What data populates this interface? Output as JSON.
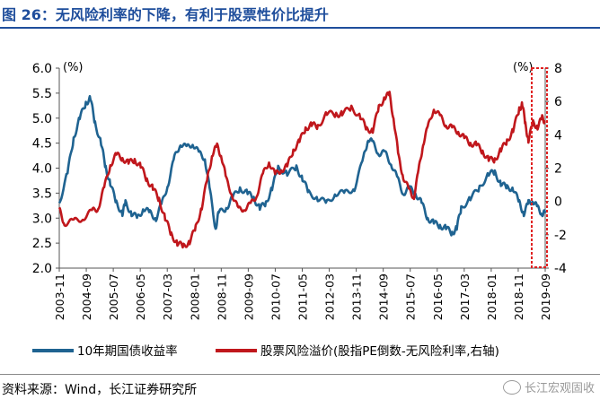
{
  "title": "图 26：无风险利率的下降，有利于股票性价比提升",
  "source": "资料来源：Wind，长江证券研究所",
  "watermark": "长江宏观固收",
  "colors": {
    "title": "#1f4e9c",
    "bond": "#1f6391",
    "erp": "#c0171c",
    "highlight": "#e02020"
  },
  "chart_data": {
    "type": "line",
    "x_ticks": [
      "2003-11",
      "2004-09",
      "2005-07",
      "2006-05",
      "2007-03",
      "2008-01",
      "2008-11",
      "2009-09",
      "2010-07",
      "2011-05",
      "2012-03",
      "2013-11",
      "2014-09",
      "2015-07",
      "2016-05",
      "2017-03",
      "2018-01",
      "2018-11",
      "2019-09"
    ],
    "left_axis": {
      "unit": "(%)",
      "ticks": [
        "6.0",
        "5.5",
        "5.0",
        "4.5",
        "4.0",
        "3.5",
        "3.0",
        "2.5",
        "2.0"
      ],
      "ylim": [
        2.0,
        6.0
      ]
    },
    "right_axis": {
      "unit": "(%)",
      "ticks": [
        "8",
        "6",
        "4",
        "2",
        "0",
        "-2",
        "-4"
      ],
      "ylim": [
        -4,
        8
      ]
    },
    "x_range": [
      2003.83,
      2019.75
    ],
    "series": [
      {
        "name": "10年期国债收益率",
        "axis": "left",
        "points": [
          [
            2003.83,
            3.3
          ],
          [
            2004.1,
            3.9
          ],
          [
            2004.3,
            4.6
          ],
          [
            2004.5,
            5.0
          ],
          [
            2004.7,
            5.3
          ],
          [
            2004.85,
            5.4
          ],
          [
            2005.0,
            4.9
          ],
          [
            2005.2,
            4.5
          ],
          [
            2005.35,
            4.0
          ],
          [
            2005.5,
            3.7
          ],
          [
            2005.7,
            3.3
          ],
          [
            2005.9,
            3.1
          ],
          [
            2006.0,
            3.3
          ],
          [
            2006.2,
            3.1
          ],
          [
            2006.4,
            3.0
          ],
          [
            2006.6,
            3.2
          ],
          [
            2006.8,
            3.1
          ],
          [
            2007.0,
            3.0
          ],
          [
            2007.2,
            3.3
          ],
          [
            2007.4,
            3.7
          ],
          [
            2007.6,
            4.2
          ],
          [
            2007.8,
            4.5
          ],
          [
            2008.0,
            4.4
          ],
          [
            2008.2,
            4.5
          ],
          [
            2008.4,
            4.3
          ],
          [
            2008.6,
            4.2
          ],
          [
            2008.75,
            3.6
          ],
          [
            2008.95,
            2.8
          ],
          [
            2009.05,
            3.1
          ],
          [
            2009.3,
            3.2
          ],
          [
            2009.5,
            3.4
          ],
          [
            2009.75,
            3.6
          ],
          [
            2010.0,
            3.5
          ],
          [
            2010.2,
            3.4
          ],
          [
            2010.4,
            3.2
          ],
          [
            2010.6,
            3.3
          ],
          [
            2010.8,
            3.6
          ],
          [
            2011.0,
            4.0
          ],
          [
            2011.3,
            3.9
          ],
          [
            2011.6,
            4.0
          ],
          [
            2011.8,
            3.8
          ],
          [
            2012.0,
            3.5
          ],
          [
            2012.3,
            3.4
          ],
          [
            2012.6,
            3.3
          ],
          [
            2012.9,
            3.5
          ],
          [
            2013.2,
            3.5
          ],
          [
            2013.5,
            3.6
          ],
          [
            2013.8,
            4.2
          ],
          [
            2013.95,
            4.6
          ],
          [
            2014.1,
            4.5
          ],
          [
            2014.3,
            4.3
          ],
          [
            2014.5,
            4.3
          ],
          [
            2014.7,
            4.1
          ],
          [
            2014.9,
            3.8
          ],
          [
            2015.1,
            3.5
          ],
          [
            2015.3,
            3.6
          ],
          [
            2015.5,
            3.5
          ],
          [
            2015.7,
            3.3
          ],
          [
            2015.9,
            3.0
          ],
          [
            2016.1,
            2.9
          ],
          [
            2016.3,
            2.85
          ],
          [
            2016.5,
            2.8
          ],
          [
            2016.7,
            2.7
          ],
          [
            2016.85,
            2.8
          ],
          [
            2017.0,
            3.2
          ],
          [
            2017.3,
            3.4
          ],
          [
            2017.6,
            3.6
          ],
          [
            2017.9,
            3.9
          ],
          [
            2018.1,
            3.9
          ],
          [
            2018.3,
            3.7
          ],
          [
            2018.5,
            3.6
          ],
          [
            2018.7,
            3.6
          ],
          [
            2018.9,
            3.3
          ],
          [
            2019.05,
            3.1
          ],
          [
            2019.2,
            3.3
          ],
          [
            2019.35,
            3.35
          ],
          [
            2019.5,
            3.2
          ],
          [
            2019.65,
            3.1
          ],
          [
            2019.75,
            3.1
          ]
        ]
      },
      {
        "name": "股票风险溢价(股指PE倒数-无风险利率,右轴)",
        "axis": "right",
        "points": [
          [
            2003.83,
            -0.5
          ],
          [
            2004.0,
            -1.3
          ],
          [
            2004.3,
            -1.2
          ],
          [
            2004.6,
            -1.0
          ],
          [
            2004.9,
            -0.6
          ],
          [
            2005.1,
            -0.4
          ],
          [
            2005.3,
            0.8
          ],
          [
            2005.5,
            2.2
          ],
          [
            2005.7,
            2.8
          ],
          [
            2005.9,
            2.6
          ],
          [
            2006.1,
            2.3
          ],
          [
            2006.3,
            2.5
          ],
          [
            2006.5,
            2.1
          ],
          [
            2006.7,
            1.3
          ],
          [
            2006.9,
            0.8
          ],
          [
            2007.1,
            0.1
          ],
          [
            2007.3,
            -1.0
          ],
          [
            2007.5,
            -2.0
          ],
          [
            2007.7,
            -2.5
          ],
          [
            2007.9,
            -2.7
          ],
          [
            2008.1,
            -2.4
          ],
          [
            2008.3,
            -1.6
          ],
          [
            2008.5,
            -0.3
          ],
          [
            2008.7,
            1.5
          ],
          [
            2008.85,
            2.9
          ],
          [
            2009.0,
            3.3
          ],
          [
            2009.15,
            2.7
          ],
          [
            2009.3,
            1.3
          ],
          [
            2009.5,
            0.4
          ],
          [
            2009.7,
            -0.5
          ],
          [
            2009.9,
            -0.4
          ],
          [
            2010.1,
            -0.2
          ],
          [
            2010.3,
            0.4
          ],
          [
            2010.5,
            1.6
          ],
          [
            2010.7,
            2.4
          ],
          [
            2010.9,
            1.6
          ],
          [
            2011.1,
            1.9
          ],
          [
            2011.3,
            2.1
          ],
          [
            2011.5,
            3.1
          ],
          [
            2011.7,
            3.6
          ],
          [
            2011.9,
            4.4
          ],
          [
            2012.1,
            4.6
          ],
          [
            2012.3,
            4.5
          ],
          [
            2012.6,
            5.3
          ],
          [
            2012.9,
            5.2
          ],
          [
            2013.1,
            5.3
          ],
          [
            2013.4,
            5.6
          ],
          [
            2013.7,
            5.1
          ],
          [
            2013.9,
            4.3
          ],
          [
            2014.1,
            4.3
          ],
          [
            2014.3,
            5.6
          ],
          [
            2014.5,
            6.3
          ],
          [
            2014.65,
            6.4
          ],
          [
            2014.8,
            4.8
          ],
          [
            2014.95,
            2.6
          ],
          [
            2015.1,
            1.5
          ],
          [
            2015.3,
            0.6
          ],
          [
            2015.45,
            0.3
          ],
          [
            2015.6,
            1.8
          ],
          [
            2015.75,
            3.5
          ],
          [
            2015.9,
            4.4
          ],
          [
            2016.1,
            5.6
          ],
          [
            2016.3,
            5.1
          ],
          [
            2016.5,
            4.6
          ],
          [
            2016.7,
            4.4
          ],
          [
            2016.9,
            4.2
          ],
          [
            2017.1,
            3.8
          ],
          [
            2017.3,
            3.5
          ],
          [
            2017.5,
            3.4
          ],
          [
            2017.7,
            3.0
          ],
          [
            2017.9,
            2.5
          ],
          [
            2018.1,
            2.5
          ],
          [
            2018.3,
            3.1
          ],
          [
            2018.5,
            3.6
          ],
          [
            2018.7,
            4.3
          ],
          [
            2018.9,
            5.5
          ],
          [
            2019.0,
            5.9
          ],
          [
            2019.1,
            4.6
          ],
          [
            2019.2,
            3.7
          ],
          [
            2019.35,
            4.7
          ],
          [
            2019.5,
            4.5
          ],
          [
            2019.65,
            5.0
          ],
          [
            2019.75,
            4.8
          ]
        ]
      }
    ],
    "legend": [
      {
        "label": "10年期国债收益率",
        "series": 0
      },
      {
        "label": "股票风险溢价(股指PE倒数-无风险利率,右轴)",
        "series": 1
      }
    ]
  }
}
